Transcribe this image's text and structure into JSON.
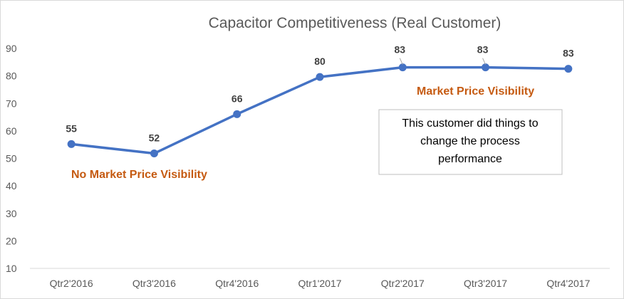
{
  "chart_data": {
    "type": "line",
    "title": "Capacitor Competitiveness (Real Customer)",
    "xlabel": "",
    "ylabel": "",
    "categories": [
      "Qtr2'2016",
      "Qtr3'2016",
      "Qtr4'2016",
      "Qtr1'2017",
      "Qtr2'2017",
      "Qtr3'2017",
      "Qtr4'2017"
    ],
    "values": [
      55.2,
      51.8,
      66.1,
      79.6,
      83.1,
      83.1,
      82.6
    ],
    "data_labels": [
      "55",
      "52",
      "66",
      "80",
      "83",
      "83",
      "83"
    ],
    "ylim": [
      10,
      90
    ],
    "yticks": [
      "10",
      "20",
      "30",
      "40",
      "50",
      "60",
      "70",
      "80",
      "90"
    ],
    "grid": false,
    "legend": "none",
    "series_color": "#4472C4",
    "annotations": {
      "before": "No Market Price Visibility",
      "after": "Market Price Visibility",
      "annotation_color": "#C55A11",
      "note_lines": [
        "This customer did things to",
        "change the process",
        "performance"
      ]
    }
  }
}
